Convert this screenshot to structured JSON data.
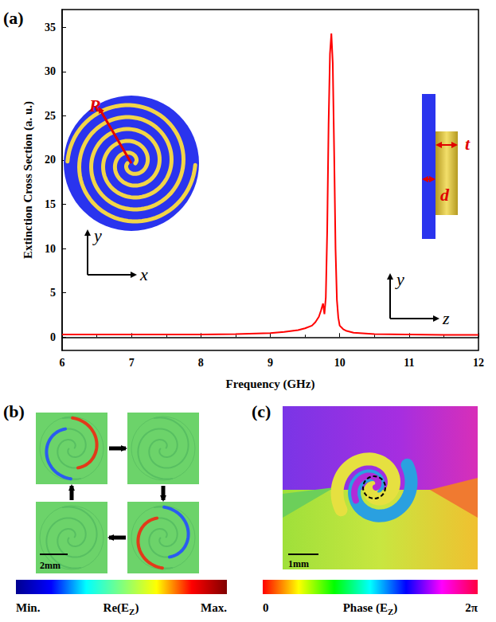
{
  "chart_data": {
    "type": "line",
    "panel_label": "(a)",
    "x_label": "Frequency (GHz)",
    "y_label": "Extinction Cross Section (a. u.)",
    "x": [
      6,
      6.5,
      7,
      7.5,
      8,
      8.5,
      9,
      9.2,
      9.4,
      9.5,
      9.6,
      9.65,
      9.7,
      9.73,
      9.76,
      9.78,
      9.8,
      9.82,
      9.84,
      9.86,
      9.88,
      9.9,
      9.92,
      9.94,
      9.96,
      9.98,
      10.0,
      10.05,
      10.1,
      10.2,
      10.5,
      11,
      11.5,
      12
    ],
    "values": [
      0.3,
      0.3,
      0.3,
      0.3,
      0.3,
      0.35,
      0.45,
      0.6,
      0.8,
      1.0,
      1.3,
      1.7,
      2.3,
      3.0,
      3.8,
      2.6,
      4.5,
      12,
      24,
      32,
      34.3,
      31,
      21,
      10,
      4.2,
      2.2,
      1.3,
      0.9,
      0.7,
      0.5,
      0.35,
      0.3,
      0.25,
      0.25
    ],
    "color": "#ff0000",
    "xlim": [
      6,
      12
    ],
    "xticks": [
      6,
      7,
      8,
      9,
      10,
      11,
      12
    ],
    "ylim": [
      -1.5,
      37
    ],
    "yticks": [
      0,
      5,
      10,
      15,
      20,
      25,
      30,
      35
    ],
    "grid": false,
    "annotations": {
      "radius": "R",
      "thickness": "t",
      "distance": "d",
      "top_view_axes": {
        "horizontal": "x",
        "vertical": "y"
      },
      "side_view_axes": {
        "horizontal": "z",
        "vertical": "y"
      }
    }
  },
  "panels": [
    {
      "label": "(b)",
      "scale_bar": "2mm",
      "colorbar": {
        "min_label": "Min.",
        "title": {
          "text": "Re(E",
          "sub": "Z",
          "suffix": ")"
        },
        "max_label": "Max."
      }
    },
    {
      "label": "(c)",
      "scale_bar": "1mm",
      "colorbar": {
        "min_label": "0",
        "title": {
          "text": "Phase (E",
          "sub": "Z",
          "suffix": ")"
        },
        "max_label": "2π"
      }
    }
  ]
}
